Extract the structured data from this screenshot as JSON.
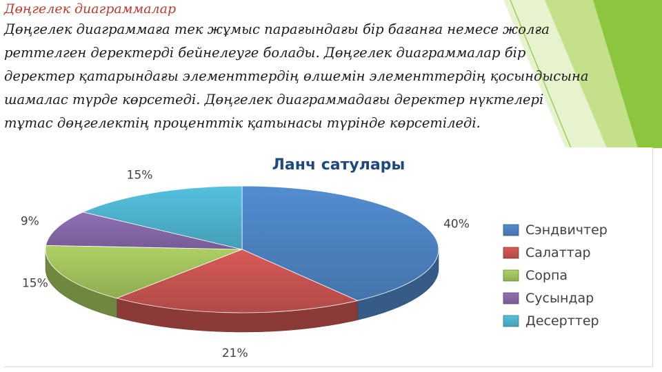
{
  "slide": {
    "title": "Дөңгелек диаграммалар",
    "body_lines": [
      "Дөңгелек диаграммаға тек жұмыс парағындағы бір бағанға немесе жолға",
      "реттелген деректерді бейнелеуге болады. Дөңгелек диаграммалар бір",
      "деректер қатарындағы элементтердің өлшемін элементтердің қосындысына",
      "шамалас түрде көрсетеді. Дөңгелек диаграммадағы деректер нүктелері",
      "тұтас дөңгелектің проценттік қатынасы түрінде көрсетіледі."
    ]
  },
  "theme": {
    "title_color": "#c0392b",
    "accent_green": "#8cc63f",
    "accent_green_light": "#c5e08a"
  },
  "chart_data": {
    "type": "pie",
    "title": "Ланч сатулары",
    "categories": [
      "Сэндвичтер",
      "Салаттар",
      "Сорпа",
      "Сусындар",
      "Десерттер"
    ],
    "values": [
      40,
      21,
      15,
      9,
      15
    ],
    "labels": [
      "40%",
      "21%",
      "15%",
      "9%",
      "15%"
    ],
    "colors": [
      "#4a7ebb",
      "#c0504d",
      "#9bbb59",
      "#8064a2",
      "#4bacc6"
    ],
    "legend": "right"
  }
}
